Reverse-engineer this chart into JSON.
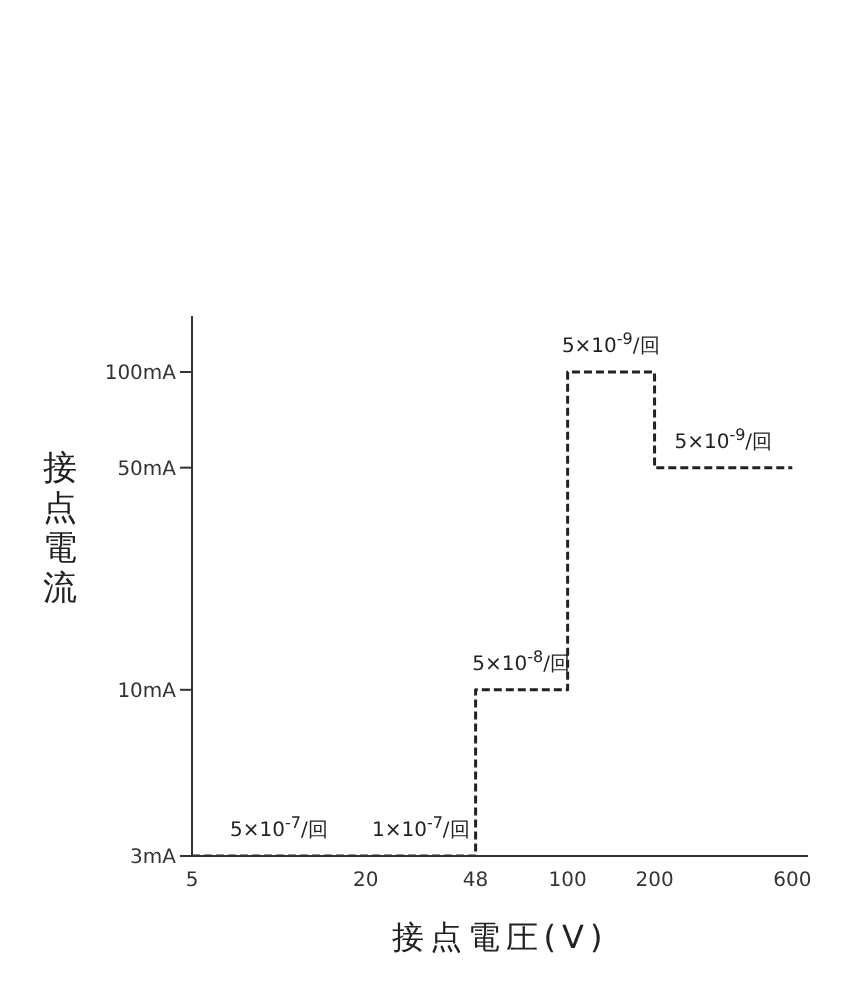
{
  "chart_data": {
    "type": "step",
    "xlabel": "接点電圧(V)",
    "ylabel": "接点電流",
    "log": "xy",
    "xlim": [
      5,
      680
    ],
    "ylim": [
      3,
      150
    ],
    "xticks": [
      5,
      20,
      48,
      100,
      200,
      600
    ],
    "yticks": [
      {
        "value": 3,
        "label": "3mA"
      },
      {
        "value": 10,
        "label": "10mA"
      },
      {
        "value": 50,
        "label": "50mA"
      },
      {
        "value": 100,
        "label": "100mA"
      }
    ],
    "marker": "none",
    "line_style": "dashed",
    "series": [
      {
        "color": "#222222",
        "x": [
          5,
          20,
          48,
          100,
          200,
          600
        ],
        "values": [
          3,
          3,
          10,
          100,
          50,
          50
        ]
      }
    ],
    "annotations": [
      {
        "text": "5×10$^{-7}$/回",
        "x": 10,
        "y": 3
      },
      {
        "text": "1×10$^{-7}$/回",
        "x": 31,
        "y": 3
      },
      {
        "text": "5×10$^{-8}$/回",
        "x": 69,
        "y": 10
      },
      {
        "text": "5×10$^{-9}$/回",
        "x": 141,
        "y": 100
      },
      {
        "text": "5×10$^{-9}$/回",
        "x": 346,
        "y": 50
      }
    ]
  }
}
